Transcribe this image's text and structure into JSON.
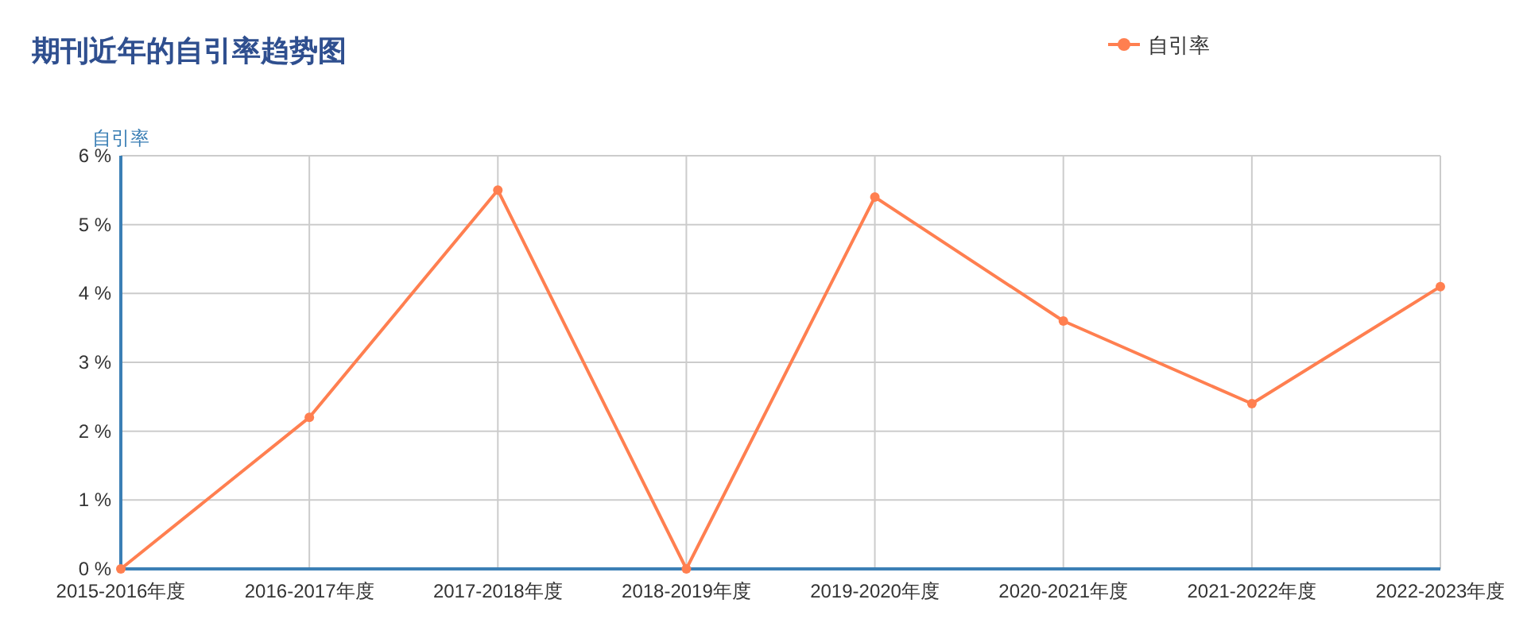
{
  "chart_data": {
    "type": "line",
    "title": "期刊近年的自引率趋势图",
    "ylabel": "自引率",
    "categories": [
      "2015-2016年度",
      "2016-2017年度",
      "2017-2018年度",
      "2018-2019年度",
      "2019-2020年度",
      "2020-2021年度",
      "2021-2022年度",
      "2022-2023年度"
    ],
    "series": [
      {
        "name": "自引率",
        "color": "#ff7f50",
        "values": [
          0,
          2.2,
          5.5,
          0,
          5.4,
          3.6,
          2.4,
          4.1
        ]
      }
    ],
    "ylim": [
      0,
      6
    ],
    "yticks": [
      {
        "value": 0,
        "label": "0 %"
      },
      {
        "value": 1,
        "label": "1 %"
      },
      {
        "value": 2,
        "label": "2 %"
      },
      {
        "value": 3,
        "label": "3 %"
      },
      {
        "value": 4,
        "label": "4 %"
      },
      {
        "value": 5,
        "label": "5 %"
      },
      {
        "value": 6,
        "label": "6 %"
      }
    ],
    "grid": true,
    "legend": "top right",
    "marker": "circle",
    "line_style": "solid"
  }
}
